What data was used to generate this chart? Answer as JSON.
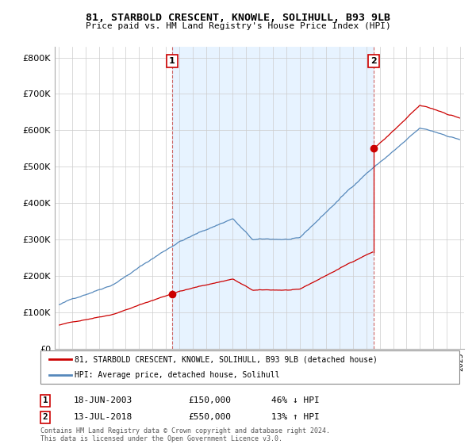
{
  "title": "81, STARBOLD CRESCENT, KNOWLE, SOLIHULL, B93 9LB",
  "subtitle": "Price paid vs. HM Land Registry's House Price Index (HPI)",
  "yticks": [
    0,
    100000,
    200000,
    300000,
    400000,
    500000,
    600000,
    700000,
    800000
  ],
  "sale1_year": 2003.46,
  "sale1_price": 150000,
  "sale1_label": "1",
  "sale1_date": "18-JUN-2003",
  "sale1_hpi_diff": "46% ↓ HPI",
  "sale2_year": 2018.53,
  "sale2_price": 550000,
  "sale2_label": "2",
  "sale2_date": "13-JUL-2018",
  "sale2_hpi_diff": "13% ↑ HPI",
  "legend_label_red": "81, STARBOLD CRESCENT, KNOWLE, SOLIHULL, B93 9LB (detached house)",
  "legend_label_blue": "HPI: Average price, detached house, Solihull",
  "footnote1": "Contains HM Land Registry data © Crown copyright and database right 2024.",
  "footnote2": "This data is licensed under the Open Government Licence v3.0.",
  "red_color": "#cc0000",
  "blue_color": "#5588bb",
  "fill_color": "#ddeeff",
  "dashed_color": "#cc6666",
  "background_chart": "#ffffff",
  "grid_color": "#cccccc"
}
